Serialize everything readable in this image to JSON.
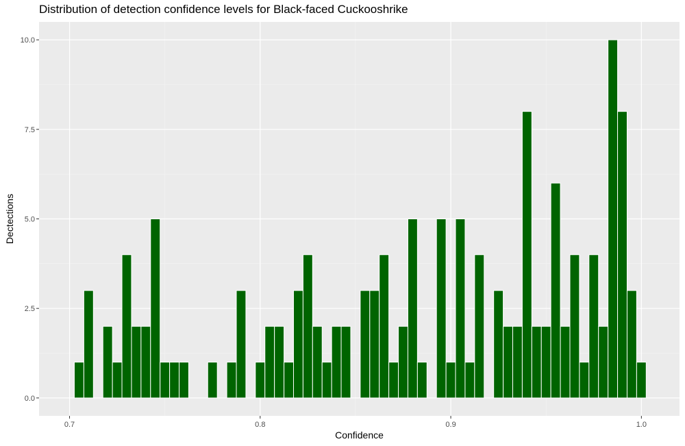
{
  "chart_data": {
    "type": "bar",
    "title": "Distribution of detection confidence levels for Black-faced Cuckooshrike",
    "xlabel": "Confidence",
    "ylabel": "Dectections",
    "xlim": [
      0.684,
      1.02
    ],
    "ylim": [
      -0.5,
      10.5
    ],
    "x_ticks": [
      0.7,
      0.8,
      0.9,
      1.0
    ],
    "x_tick_labels": [
      "0.7",
      "0.8",
      "0.9",
      "1.0"
    ],
    "y_ticks": [
      0,
      2.5,
      5,
      7.5,
      10
    ],
    "y_tick_labels": [
      "0.0",
      "2.5",
      "5.0",
      "7.5",
      "10.0"
    ],
    "bin_width": 0.005,
    "bar_color": "#006400",
    "bar_outline": "#ffffff",
    "panel_background": "#ebebeb",
    "grid": true,
    "x": [
      0.705,
      0.71,
      0.72,
      0.725,
      0.73,
      0.735,
      0.74,
      0.745,
      0.75,
      0.755,
      0.76,
      0.775,
      0.785,
      0.79,
      0.8,
      0.805,
      0.81,
      0.815,
      0.82,
      0.825,
      0.83,
      0.835,
      0.84,
      0.845,
      0.855,
      0.86,
      0.865,
      0.87,
      0.875,
      0.88,
      0.885,
      0.895,
      0.9,
      0.905,
      0.91,
      0.915,
      0.925,
      0.93,
      0.935,
      0.94,
      0.945,
      0.95,
      0.955,
      0.96,
      0.965,
      0.97,
      0.975,
      0.98,
      0.985,
      0.99,
      0.995,
      1.0
    ],
    "values": [
      1,
      3,
      2,
      1,
      4,
      2,
      2,
      5,
      1,
      1,
      1,
      1,
      1,
      3,
      1,
      2,
      2,
      1,
      3,
      4,
      2,
      1,
      2,
      2,
      3,
      3,
      4,
      1,
      2,
      5,
      1,
      5,
      1,
      5,
      1,
      4,
      3,
      2,
      2,
      8,
      2,
      2,
      6,
      2,
      4,
      1,
      4,
      2,
      10,
      8,
      3,
      1
    ]
  }
}
